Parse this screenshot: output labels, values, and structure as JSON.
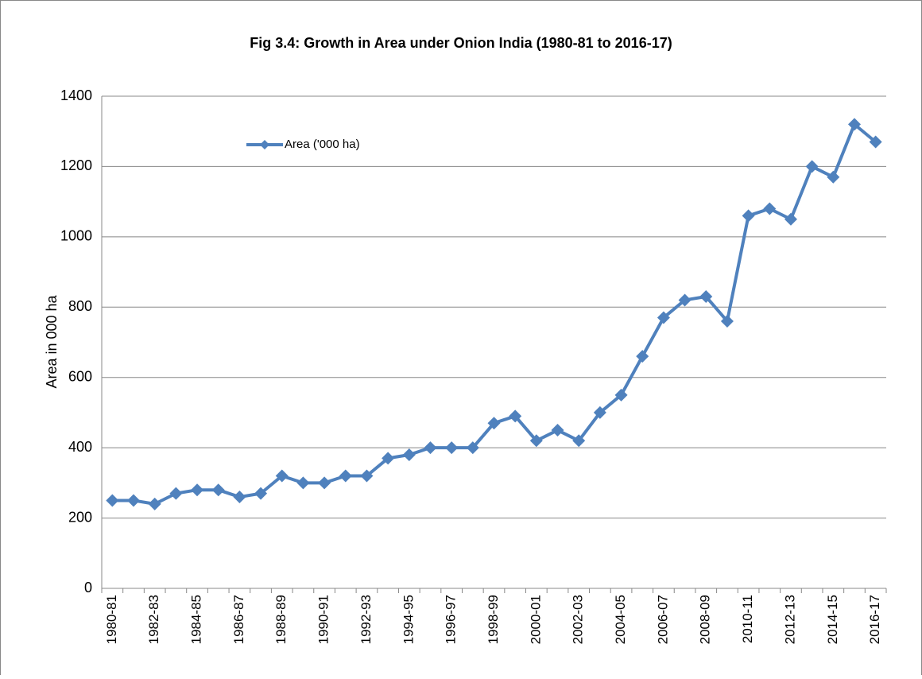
{
  "chart_data": {
    "type": "line",
    "title": "Fig 3.4: Growth in Area under  Onion India  (1980-81 to 2016-17)",
    "y_label": "Area in 000 ha",
    "categories": [
      "1980-81",
      null,
      "1982-83",
      null,
      "1984-85",
      null,
      "1986-87",
      null,
      "1988-89",
      null,
      "1990-91",
      null,
      "1992-93",
      null,
      "1994-95",
      null,
      "1996-97",
      null,
      "1998-99",
      null,
      "2000-01",
      null,
      "2002-03",
      null,
      "2004-05",
      null,
      "2006-07",
      null,
      "2008-09",
      null,
      "2010-11",
      null,
      "2012-13",
      null,
      "2014-15",
      null,
      "2016-17"
    ],
    "series": [
      {
        "name": "Area ('000 ha)",
        "color": "#4f81bd",
        "values": [
          250,
          250,
          240,
          270,
          280,
          280,
          260,
          270,
          320,
          300,
          300,
          320,
          320,
          370,
          380,
          400,
          400,
          400,
          470,
          490,
          420,
          450,
          420,
          500,
          550,
          660,
          770,
          820,
          830,
          760,
          1060,
          1080,
          1050,
          1200,
          1170,
          1320,
          1270
        ]
      }
    ],
    "ylim": [
      0,
      1400
    ],
    "yticks": [
      0,
      200,
      400,
      600,
      800,
      1000,
      1200,
      1400
    ],
    "grid": true,
    "legend": "top-left"
  }
}
